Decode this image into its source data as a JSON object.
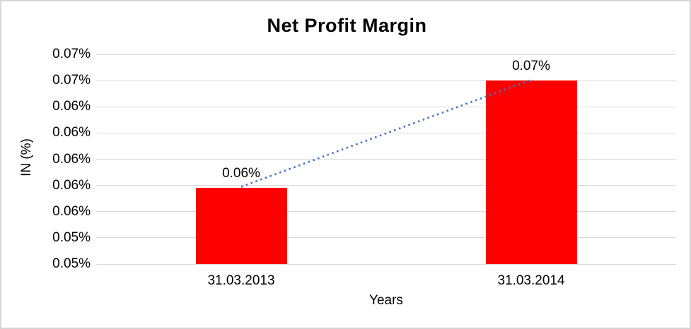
{
  "frame": {
    "background": "#FFFFFF",
    "border_color": "#D6D6D6"
  },
  "chart_data": {
    "type": "bar",
    "title": "Net Profit Margin",
    "xlabel": "Years",
    "ylabel": "IN (%)",
    "categories": [
      "31.03.2013",
      "31.03.2014"
    ],
    "series": [
      {
        "name": "Net Profit Margin",
        "values": [
          0.0573,
          0.0675
        ],
        "data_labels": [
          "0.06%",
          "0.07%"
        ],
        "color": "#FF0000"
      }
    ],
    "trendline": {
      "style": "dotted",
      "color": "#4472C4",
      "connects_values": [
        0.0573,
        0.0675
      ]
    },
    "ylim": [
      0.05,
      0.07
    ],
    "y_ticks": {
      "values": [
        0.07,
        0.0675,
        0.065,
        0.0625,
        0.06,
        0.0575,
        0.055,
        0.0525,
        0.05
      ],
      "labels": [
        "0.07%",
        "0.07%",
        "0.06%",
        "0.06%",
        "0.06%",
        "0.06%",
        "0.06%",
        "0.05%",
        "0.05%"
      ]
    },
    "grid": true,
    "legend": false,
    "gridline_color": "#D9D9D9"
  }
}
